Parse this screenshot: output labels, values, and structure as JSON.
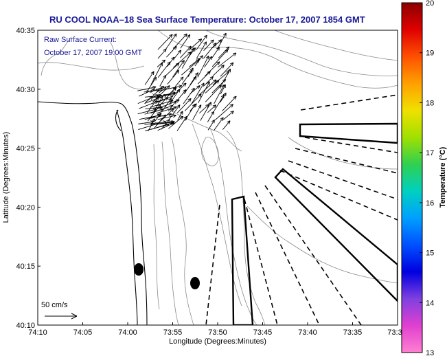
{
  "title": "RU COOL  NOAA–18  Sea Surface Temperature:  October 17, 2007 1854 GMT",
  "annotation": {
    "line1": "Raw Surface Current:",
    "line2": "October 17, 2007 19:00 GMT"
  },
  "axes": {
    "xlabel": "Longitude (Degrees:Minutes)",
    "ylabel": "Latitude (Degrees:Minutes)",
    "xticks": [
      "74:10",
      "74:05",
      "74:00",
      "73:55",
      "73:50",
      "73:45",
      "73:40",
      "73:35",
      "73:3"
    ],
    "yticks": [
      "40:35",
      "40:30",
      "40:25",
      "40:20",
      "40:15",
      "40:10"
    ]
  },
  "scale_label": "50 cm/s",
  "colorbar": {
    "label": "Temperature (°C)",
    "ticks": [
      "20",
      "19",
      "18",
      "17",
      "16",
      "15",
      "14",
      "13"
    ],
    "colors": [
      "#8b0000",
      "#e00000",
      "#ff5000",
      "#ffa000",
      "#f0e000",
      "#a0e000",
      "#30d050",
      "#00d0c0",
      "#00a0ff",
      "#0050ff",
      "#0000e0",
      "#8040e0",
      "#e040d0",
      "#ff80d0"
    ]
  }
}
